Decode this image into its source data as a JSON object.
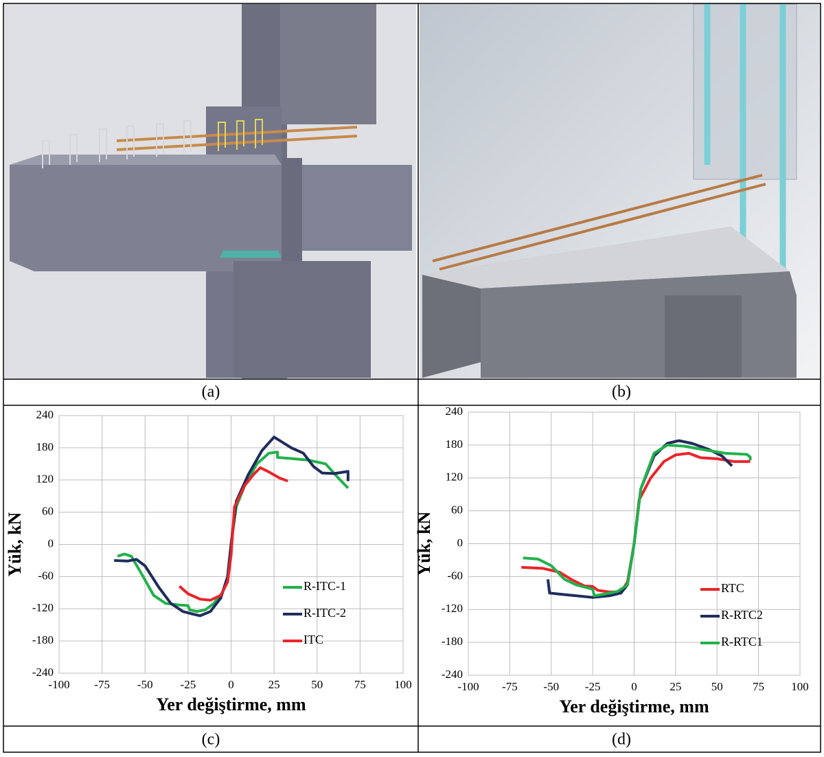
{
  "captions": [
    "(a)",
    "(b)",
    "(c)",
    "(d)"
  ],
  "chart_data": [
    {
      "type": "line",
      "xlabel": "Yer değiştirme, mm",
      "ylabel": "Yük, kN",
      "xlim": [
        -100,
        100
      ],
      "xticks": [
        -100,
        -75,
        -50,
        -25,
        0,
        25,
        50,
        75,
        100
      ],
      "ylim": [
        -240,
        240
      ],
      "yticks": [
        -240,
        -180,
        -120,
        -60,
        0,
        60,
        120,
        180,
        240
      ],
      "grid": true,
      "series": [
        {
          "name": "R-ITC-1",
          "color": "#22b14c",
          "x": [
            -66,
            -62,
            -58,
            -52,
            -45,
            -38,
            -30,
            -25,
            -24,
            -20,
            -15,
            -10,
            -5,
            -2,
            0,
            3,
            8,
            15,
            22,
            27,
            27,
            35,
            45,
            55,
            62,
            68
          ],
          "values": [
            -22,
            -18,
            -22,
            -55,
            -95,
            -110,
            -113,
            -114,
            -122,
            -125,
            -122,
            -110,
            -90,
            -60,
            0,
            70,
            110,
            150,
            170,
            172,
            162,
            160,
            157,
            150,
            125,
            105
          ]
        },
        {
          "name": "R-ITC-2",
          "color": "#1f2d5c",
          "x": [
            -68,
            -60,
            -55,
            -50,
            -42,
            -35,
            -28,
            -22,
            -18,
            -12,
            -6,
            -2,
            0,
            3,
            10,
            18,
            25,
            30,
            35,
            42,
            48,
            53,
            60,
            68,
            68
          ],
          "values": [
            -30,
            -31,
            -28,
            -40,
            -80,
            -110,
            -125,
            -130,
            -133,
            -125,
            -100,
            -60,
            0,
            80,
            130,
            175,
            200,
            190,
            180,
            170,
            145,
            133,
            132,
            136,
            118
          ]
        },
        {
          "name": "ITC",
          "color": "#e8252b",
          "x": [
            -30,
            -25,
            -18,
            -12,
            -6,
            -2,
            0,
            2,
            8,
            13,
            17,
            22,
            28,
            33
          ],
          "values": [
            -78,
            -92,
            -102,
            -104,
            -95,
            -70,
            -20,
            70,
            110,
            130,
            143,
            135,
            124,
            118
          ]
        }
      ]
    },
    {
      "type": "line",
      "xlabel": "Yer değiştirme, mm",
      "ylabel": "Yük, kN",
      "xlim": [
        -100,
        100
      ],
      "xticks": [
        -100,
        -75,
        -50,
        -25,
        0,
        25,
        50,
        75,
        100
      ],
      "ylim": [
        -240,
        240
      ],
      "yticks": [
        -240,
        -180,
        -120,
        -60,
        0,
        60,
        120,
        180,
        240
      ],
      "grid": true,
      "series": [
        {
          "name": "RTC",
          "color": "#e8252b",
          "x": [
            -68,
            -55,
            -45,
            -38,
            -30,
            -25,
            -22,
            -15,
            -8,
            -4,
            0,
            3,
            10,
            18,
            25,
            33,
            40,
            50,
            60,
            70
          ],
          "values": [
            -43,
            -45,
            -52,
            -65,
            -77,
            -78,
            -85,
            -88,
            -88,
            -70,
            0,
            80,
            120,
            150,
            162,
            165,
            157,
            155,
            150,
            150
          ]
        },
        {
          "name": "R-RTC2",
          "color": "#1f2d5c",
          "x": [
            -52,
            -51,
            -45,
            -35,
            -25,
            -15,
            -8,
            -4,
            0,
            4,
            12,
            20,
            27,
            35,
            45,
            53,
            59
          ],
          "values": [
            -65,
            -90,
            -92,
            -95,
            -98,
            -95,
            -90,
            -75,
            0,
            100,
            160,
            183,
            188,
            183,
            172,
            160,
            142
          ]
        },
        {
          "name": "R-RTC1",
          "color": "#22b14c",
          "x": [
            -67,
            -58,
            -50,
            -42,
            -35,
            -25,
            -24,
            -18,
            -10,
            -4,
            0,
            4,
            12,
            20,
            30,
            45,
            55,
            68,
            70,
            70
          ],
          "values": [
            -26,
            -28,
            -40,
            -65,
            -75,
            -83,
            -95,
            -92,
            -87,
            -75,
            0,
            100,
            165,
            180,
            178,
            170,
            165,
            163,
            158,
            152
          ]
        }
      ]
    }
  ]
}
